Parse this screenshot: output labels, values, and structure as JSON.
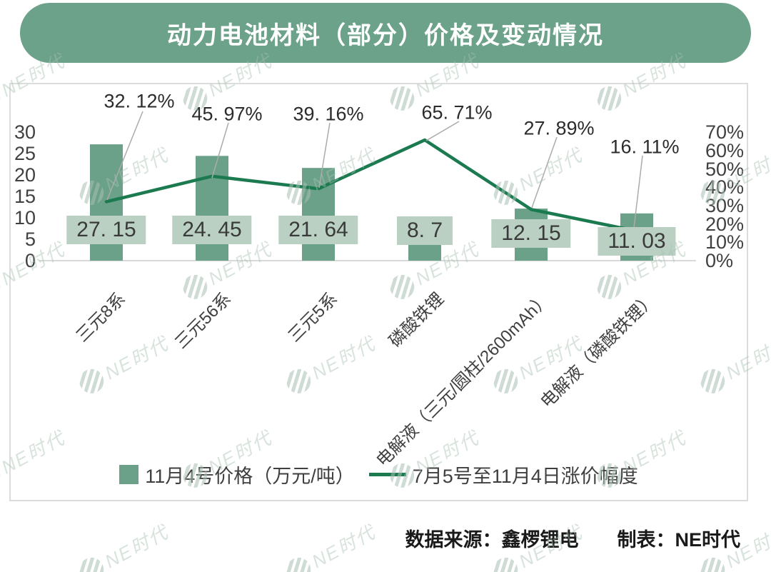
{
  "title": "动力电池材料（部分）价格及变动情况",
  "legend": {
    "bar_label": "11月4号价格（万元/吨）",
    "line_label": "7月5号至11月4日涨价幅度"
  },
  "source": {
    "data_source": "数据来源：鑫椤锂电",
    "table_maker": "制表：NE时代"
  },
  "watermark": {
    "text": "NE时代"
  },
  "colors": {
    "banner_green": "#6CA289",
    "bar_green": "#6BA188",
    "line_green": "#1B7A50",
    "value_box_bg": "#B9D0C3",
    "axis_gray": "#D9D9D9",
    "leader_gray": "#ABABAB",
    "text_dark": "#3F3F3F",
    "watermark_gray_green": "#AEC3B6"
  },
  "chart_data": {
    "type": "combo_bar_line",
    "title": "动力电池材料（部分）价格及变动情况",
    "categories": [
      "三元8系",
      "三元56系",
      "三元5系",
      "磷酸铁锂",
      "电解液（三元/圆柱/2600mAh）",
      "电解液（磷酸铁锂）"
    ],
    "series": [
      {
        "name": "11月4号价格（万元/吨）",
        "type": "bar",
        "axis": "left",
        "values": [
          27.15,
          24.45,
          21.64,
          8.7,
          12.15,
          11.03
        ],
        "display_labels": [
          "27. 15",
          "24. 45",
          "21. 64",
          "8. 7",
          "12. 15",
          "11. 03"
        ]
      },
      {
        "name": "7月5号至11月4日涨价幅度",
        "type": "line",
        "axis": "right",
        "values_pct": [
          32.12,
          45.97,
          39.16,
          65.71,
          27.89,
          16.11
        ],
        "display_labels": [
          "32. 12%",
          "45. 97%",
          "39. 16%",
          "65. 71%",
          "27. 89%",
          "16. 11%"
        ]
      }
    ],
    "left_axis": {
      "ticks": [
        "30",
        "25",
        "20",
        "15",
        "10",
        "5",
        "0"
      ],
      "min": 0,
      "max": 30
    },
    "right_axis": {
      "ticks": [
        "70%",
        "60%",
        "50%",
        "40%",
        "30%",
        "20%",
        "10%",
        "0%"
      ],
      "min": "0%",
      "max": "70%"
    },
    "grid": false,
    "legend_position": "bottom-inside"
  }
}
